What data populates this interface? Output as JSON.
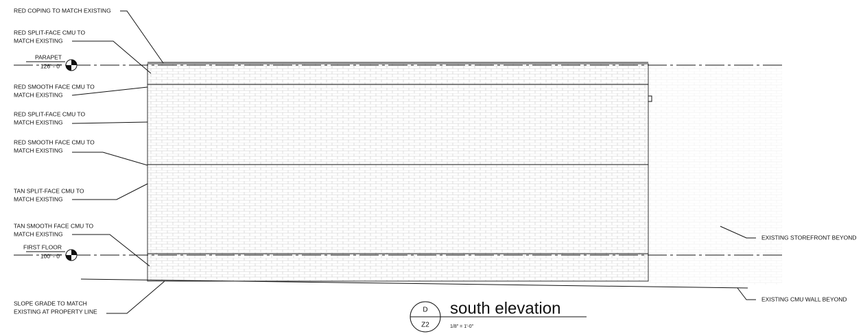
{
  "annotations": [
    {
      "lines": [
        "RED COPING TO MATCH EXISTING"
      ]
    },
    {
      "lines": [
        "RED SPLIT-FACE CMU TO",
        "MATCH EXISTING"
      ]
    },
    {
      "lines": [
        "RED SMOOTH FACE CMU TO",
        "MATCH EXISTING"
      ]
    },
    {
      "lines": [
        "RED SPLIT-FACE CMU TO",
        "MATCH EXISTING"
      ]
    },
    {
      "lines": [
        "RED SMOOTH FACE CMU TO",
        "MATCH EXISTING"
      ]
    },
    {
      "lines": [
        "TAN SPLIT-FACE CMU TO",
        "MATCH EXISTING"
      ]
    },
    {
      "lines": [
        "TAN SMOOTH FACE CMU TO",
        "MATCH EXISTING"
      ]
    },
    {
      "lines": [
        "SLOPE GRADE TO MATCH",
        "EXISTING AT PROPERTY LINE"
      ]
    },
    {
      "lines": [
        "EXISTING STOREFRONT BEYOND"
      ]
    },
    {
      "lines": [
        "EXISTING CMU WALL BEYOND"
      ]
    }
  ],
  "levels": [
    {
      "name": "PARAPET",
      "elevation": "126' - 0\""
    },
    {
      "name": "FIRST FLOOR",
      "elevation": "100' - 0\""
    }
  ],
  "view_title": {
    "detail": "D",
    "sheet": "Z2",
    "title": "south elevation",
    "scale": "1/8\" = 1'-0\""
  }
}
